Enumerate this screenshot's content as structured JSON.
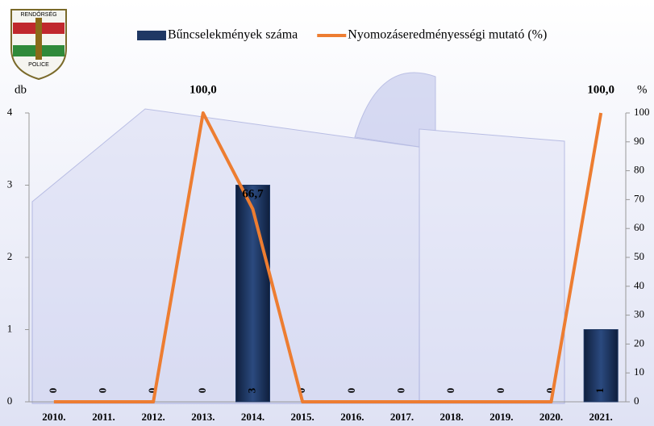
{
  "logo": {
    "top": "RENDŐRSÉG",
    "bottom": "POLICE"
  },
  "chart_data": {
    "type": "bar-line",
    "ylabel": "db",
    "y2label": "%",
    "categories": [
      "2010.",
      "2011.",
      "2012.",
      "2013.",
      "2014.",
      "2015.",
      "2016.",
      "2017.",
      "2018.",
      "2019.",
      "2020.",
      "2021."
    ],
    "series": [
      {
        "name": "Bűncselekmények száma",
        "type": "bar",
        "color": "#1f3864",
        "values": [
          0,
          0,
          0,
          0,
          3,
          0,
          0,
          0,
          0,
          0,
          0,
          1
        ]
      },
      {
        "name": "Nyomozáseredményességi mutató (%)",
        "type": "line",
        "axis": "y2",
        "color": "#ed7d31",
        "values": [
          0,
          0,
          0,
          100,
          66.7,
          0,
          0,
          0,
          0,
          0,
          0,
          100
        ],
        "value_labels": [
          null,
          null,
          null,
          "100,0",
          "66,7",
          null,
          null,
          null,
          null,
          null,
          null,
          "100,0"
        ]
      }
    ],
    "ylim": [
      0,
      4
    ],
    "yticks": [
      0,
      1,
      2,
      3,
      4
    ],
    "y2lim": [
      0,
      100
    ],
    "y2ticks": [
      0,
      10,
      20,
      30,
      40,
      50,
      60,
      70,
      80,
      90,
      100
    ],
    "legend": "top"
  }
}
